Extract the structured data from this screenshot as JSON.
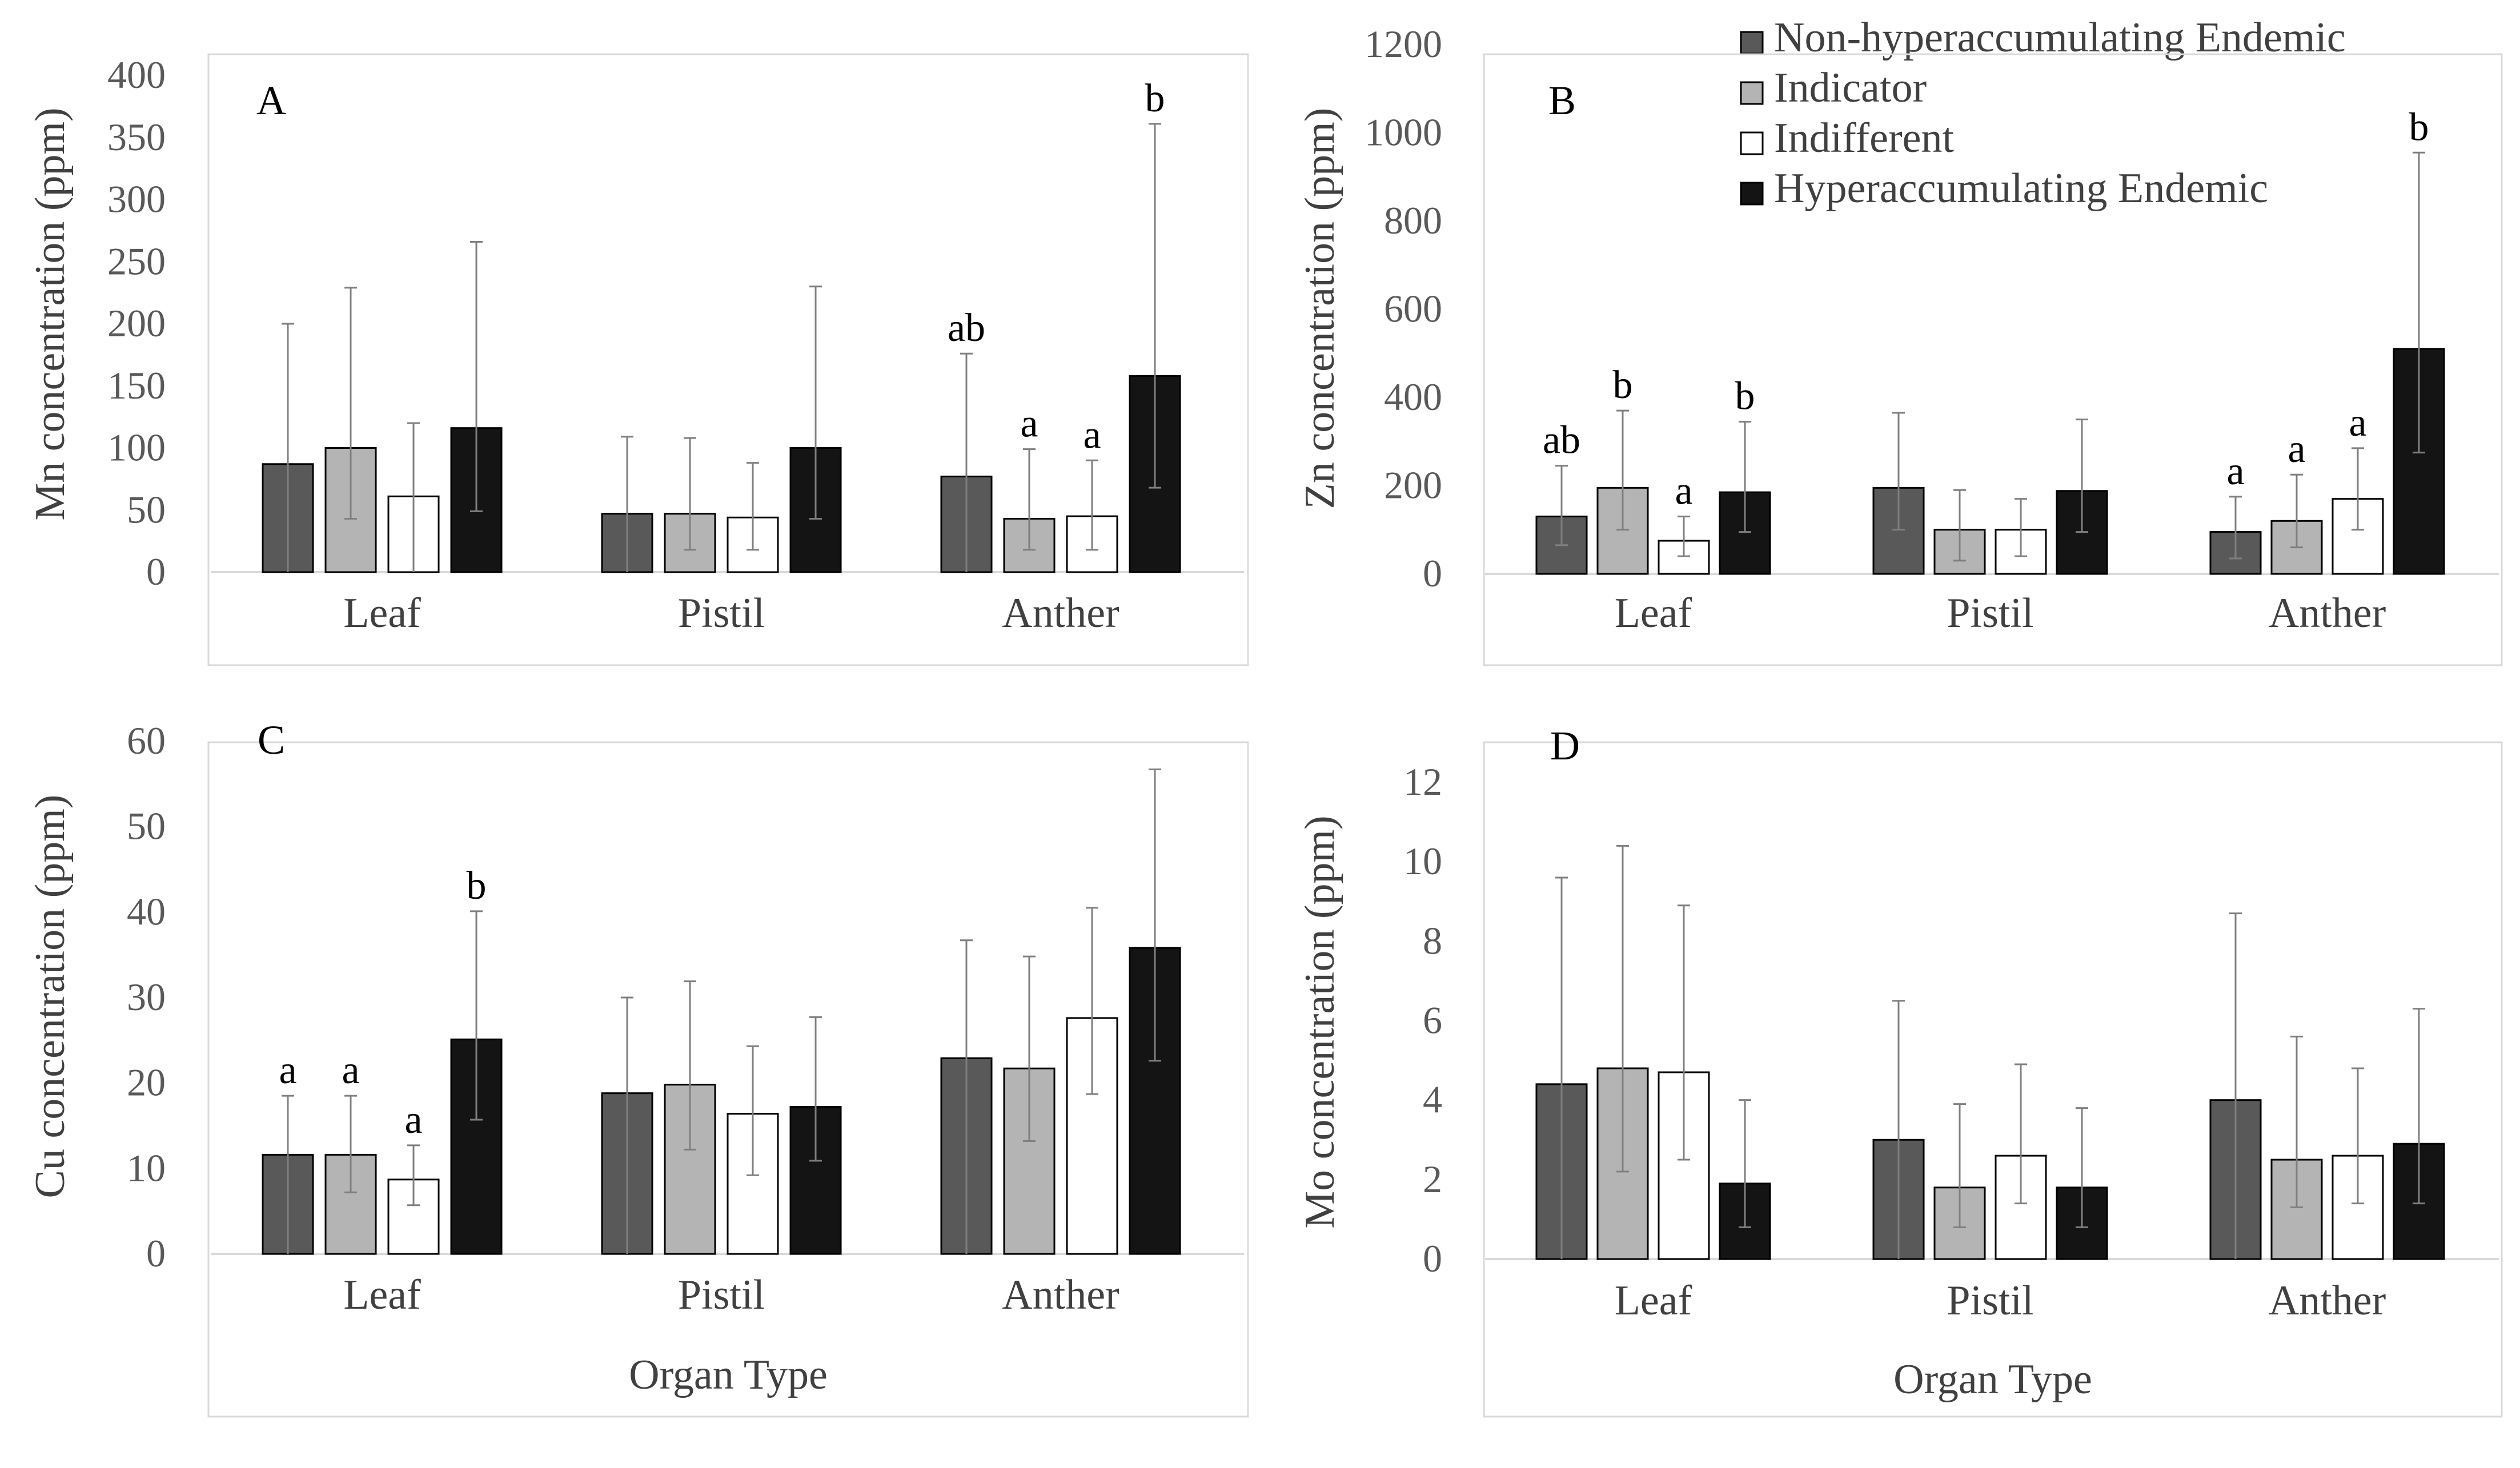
{
  "legend": [
    {
      "label": "Non-hyperaccumulating Endemic",
      "color": "#595959"
    },
    {
      "label": "Indicator",
      "color": "#b4b4b4"
    },
    {
      "label": "Indifferent",
      "color": "#ffffff"
    },
    {
      "label": "Hyperaccumulating Endemic",
      "color": "#141414"
    }
  ],
  "chart_data": [
    {
      "type": "bar",
      "panel": "A",
      "ylabel": "Mn concentration (ppm)",
      "xlabel": "",
      "ylim": [
        0,
        400
      ],
      "yticks": [
        "0",
        "50",
        "100",
        "150",
        "200",
        "250",
        "300",
        "350",
        "400"
      ],
      "categories": [
        "Leaf",
        "Pistil",
        "Anther"
      ],
      "series": [
        {
          "name": "Non-hyperaccumulating Endemic",
          "values": [
            87,
            47,
            77
          ],
          "err_low": [
            0,
            0,
            0
          ],
          "err_high": [
            200,
            109,
            176
          ],
          "letters": [
            "",
            "",
            "ab"
          ]
        },
        {
          "name": "Indicator",
          "values": [
            100,
            47,
            43
          ],
          "err_low": [
            43,
            18,
            18
          ],
          "err_high": [
            229,
            108,
            99
          ],
          "letters": [
            "",
            "",
            "a"
          ]
        },
        {
          "name": "Indifferent",
          "values": [
            61,
            44,
            45
          ],
          "err_low": [
            0,
            18,
            18
          ],
          "err_high": [
            120,
            88,
            90
          ],
          "letters": [
            "",
            "",
            "a"
          ]
        },
        {
          "name": "Hyperaccumulating Endemic",
          "values": [
            116,
            100,
            158
          ],
          "err_low": [
            49,
            43,
            68
          ],
          "err_high": [
            266,
            230,
            361
          ],
          "letters": [
            "",
            "",
            "b"
          ]
        }
      ]
    },
    {
      "type": "bar",
      "panel": "B",
      "ylabel": "Zn concentration (ppm)",
      "xlabel": "",
      "ylim": [
        0,
        1200
      ],
      "yticks": [
        "0",
        "200",
        "400",
        "600",
        "800",
        "1000",
        "1200"
      ],
      "categories": [
        "Leaf",
        "Pistil",
        "Anther"
      ],
      "series": [
        {
          "name": "Non-hyperaccumulating Endemic",
          "values": [
            130,
            195,
            95
          ],
          "err_low": [
            65,
            100,
            35
          ],
          "err_high": [
            245,
            365,
            175
          ],
          "letters": [
            "ab",
            "",
            "a"
          ]
        },
        {
          "name": "Indicator",
          "values": [
            195,
            100,
            120
          ],
          "err_low": [
            100,
            30,
            60
          ],
          "err_high": [
            370,
            190,
            225
          ],
          "letters": [
            "b",
            "",
            "a"
          ]
        },
        {
          "name": "Indifferent",
          "values": [
            75,
            100,
            170
          ],
          "err_low": [
            40,
            40,
            100
          ],
          "err_high": [
            130,
            170,
            285
          ],
          "letters": [
            "a",
            "",
            "a"
          ]
        },
        {
          "name": "Hyperaccumulating Endemic",
          "values": [
            185,
            188,
            510
          ],
          "err_low": [
            95,
            95,
            275
          ],
          "err_high": [
            345,
            350,
            955
          ],
          "letters": [
            "b",
            "",
            "b"
          ]
        }
      ]
    },
    {
      "type": "bar",
      "panel": "C",
      "ylabel": "Cu concentration (ppm)",
      "xlabel": "Organ Type",
      "ylim": [
        0,
        60
      ],
      "yticks": [
        "0",
        "10",
        "20",
        "30",
        "40",
        "50",
        "60"
      ],
      "categories": [
        "Leaf",
        "Pistil",
        "Anther"
      ],
      "series": [
        {
          "name": "Non-hyperaccumulating Endemic",
          "values": [
            11.6,
            18.8,
            22.9
          ],
          "err_low": [
            0,
            0,
            0
          ],
          "err_high": [
            18.5,
            30,
            36.7
          ],
          "letters": [
            "a",
            "",
            ""
          ]
        },
        {
          "name": "Indicator",
          "values": [
            11.6,
            19.8,
            21.7
          ],
          "err_low": [
            7.2,
            12.2,
            13.2
          ],
          "err_high": [
            18.5,
            31.9,
            34.8
          ],
          "letters": [
            "a",
            "",
            ""
          ]
        },
        {
          "name": "Indifferent",
          "values": [
            8.7,
            16.4,
            27.6
          ],
          "err_low": [
            5.7,
            9.2,
            18.7
          ],
          "err_high": [
            12.7,
            24.3,
            40.5
          ],
          "letters": [
            "a",
            "",
            ""
          ]
        },
        {
          "name": "Hyperaccumulating Endemic",
          "values": [
            25.1,
            17.2,
            35.8
          ],
          "err_low": [
            15.7,
            10.9,
            22.6
          ],
          "err_high": [
            40.1,
            27.7,
            56.7
          ],
          "letters": [
            "b",
            "",
            ""
          ]
        }
      ]
    },
    {
      "type": "bar",
      "panel": "D",
      "ylabel": "Mo concentration (ppm)",
      "xlabel": "Organ Type",
      "ylim": [
        0,
        12
      ],
      "yticks": [
        "0",
        "2",
        "4",
        "6",
        "8",
        "10",
        "12"
      ],
      "categories": [
        "Leaf",
        "Pistil",
        "Anther"
      ],
      "series": [
        {
          "name": "Non-hyperaccumulating Endemic",
          "values": [
            4.4,
            3.0,
            4.0
          ],
          "err_low": [
            0,
            0,
            0
          ],
          "err_high": [
            9.6,
            6.5,
            8.7
          ],
          "letters": [
            "",
            "",
            ""
          ]
        },
        {
          "name": "Indicator",
          "values": [
            4.8,
            1.8,
            2.5
          ],
          "err_low": [
            2.2,
            0.8,
            1.3
          ],
          "err_high": [
            10.4,
            3.9,
            5.6
          ],
          "letters": [
            "",
            "",
            ""
          ]
        },
        {
          "name": "Indifferent",
          "values": [
            4.7,
            2.6,
            2.6
          ],
          "err_low": [
            2.5,
            1.4,
            1.4
          ],
          "err_high": [
            8.9,
            4.9,
            4.8
          ],
          "letters": [
            "",
            "",
            ""
          ]
        },
        {
          "name": "Hyperaccumulating Endemic",
          "values": [
            1.9,
            1.8,
            2.9
          ],
          "err_low": [
            0.8,
            0.8,
            1.4
          ],
          "err_high": [
            4.0,
            3.8,
            6.3
          ],
          "letters": [
            "",
            "",
            ""
          ]
        }
      ]
    }
  ]
}
